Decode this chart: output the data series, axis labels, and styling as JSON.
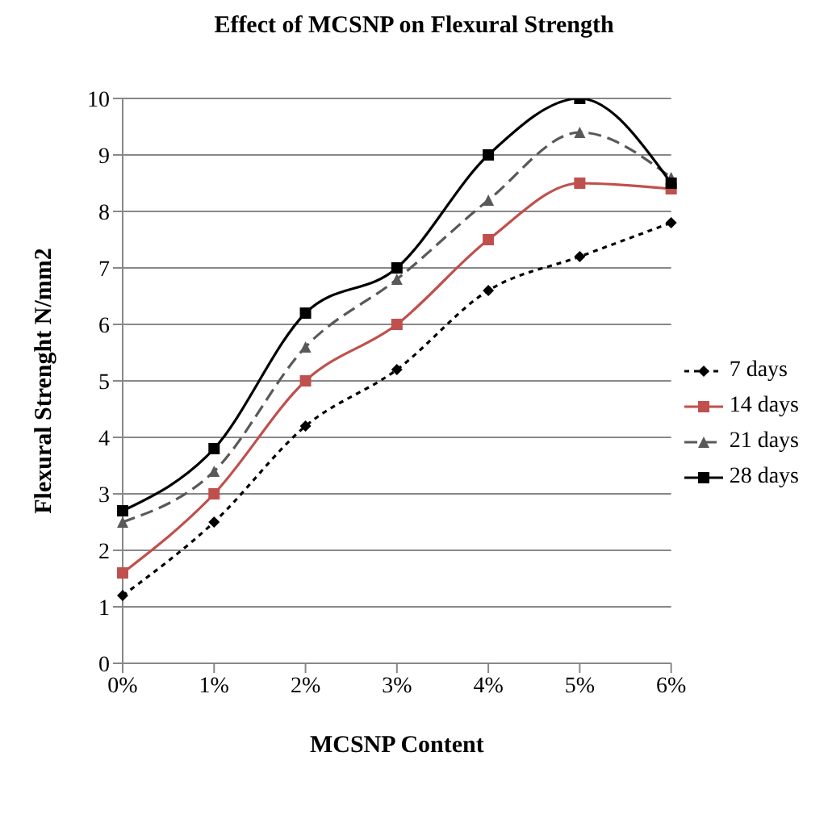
{
  "chart_data": {
    "type": "line",
    "title": "Effect of MCSNP on Flexural Strength",
    "xlabel": "MCSNP Content",
    "ylabel": "Flexural Strenght N/mm2",
    "categories": [
      "0%",
      "1%",
      "2%",
      "3%",
      "4%",
      "5%",
      "6%"
    ],
    "series": [
      {
        "name": "7 days",
        "color": "#000000",
        "marker": "diamond",
        "line_style": "dotted",
        "values": [
          1.2,
          2.5,
          4.2,
          5.2,
          6.6,
          7.2,
          7.8
        ]
      },
      {
        "name": "14 days",
        "color": "#c0504d",
        "marker": "square",
        "line_style": "solid",
        "values": [
          1.6,
          3.0,
          5.0,
          6.0,
          7.5,
          8.5,
          8.4
        ]
      },
      {
        "name": "21 days",
        "color": "#595959",
        "marker": "triangle",
        "line_style": "dashed",
        "values": [
          2.5,
          3.4,
          5.6,
          6.8,
          8.2,
          9.4,
          8.6
        ]
      },
      {
        "name": "28 days",
        "color": "#000000",
        "marker": "square",
        "line_style": "solid",
        "values": [
          2.7,
          3.8,
          6.2,
          7.0,
          9.0,
          10.0,
          8.5
        ]
      }
    ],
    "ylim": [
      0,
      10
    ],
    "yticks": [
      0,
      1,
      2,
      3,
      4,
      5,
      6,
      7,
      8,
      9,
      10
    ],
    "grid": "y",
    "legend": "right"
  }
}
